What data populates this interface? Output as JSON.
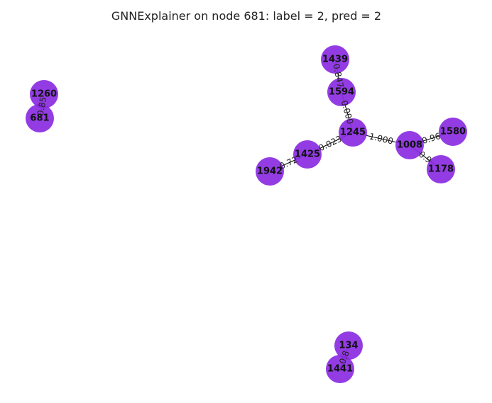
{
  "title": "GNNExplainer on node 681: label = 2, pred = 2",
  "colors": {
    "node": "#8a2be2",
    "edge": "#000000",
    "text": "#111111"
  },
  "nodes": [
    {
      "id": "1439",
      "label": "1439"
    },
    {
      "id": "1594",
      "label": "1594"
    },
    {
      "id": "1245",
      "label": "1245"
    },
    {
      "id": "1008",
      "label": "1008"
    },
    {
      "id": "1580",
      "label": "1580"
    },
    {
      "id": "1178",
      "label": "1178"
    },
    {
      "id": "1425",
      "label": "1425"
    },
    {
      "id": "1942",
      "label": "1942"
    },
    {
      "id": "1260",
      "label": "1260"
    },
    {
      "id": "681",
      "label": "681"
    },
    {
      "id": "134",
      "label": "134"
    },
    {
      "id": "1441",
      "label": "1441"
    }
  ],
  "edges": [
    {
      "source": "1439",
      "target": "1594",
      "weight": "0.847"
    },
    {
      "source": "1594",
      "target": "1245",
      "weight": "0.000"
    },
    {
      "source": "1245",
      "target": "1008",
      "weight": "1.000"
    },
    {
      "source": "1008",
      "target": "1580",
      "weight": "0.96"
    },
    {
      "source": "1008",
      "target": "1178",
      "weight": "0.9"
    },
    {
      "source": "1245",
      "target": "1425",
      "weight": "0.023"
    },
    {
      "source": "1425",
      "target": "1942",
      "weight": "0.72"
    },
    {
      "source": "1260",
      "target": "681",
      "weight": "0.85"
    },
    {
      "source": "134",
      "target": "1441",
      "weight": "0.8"
    }
  ]
}
